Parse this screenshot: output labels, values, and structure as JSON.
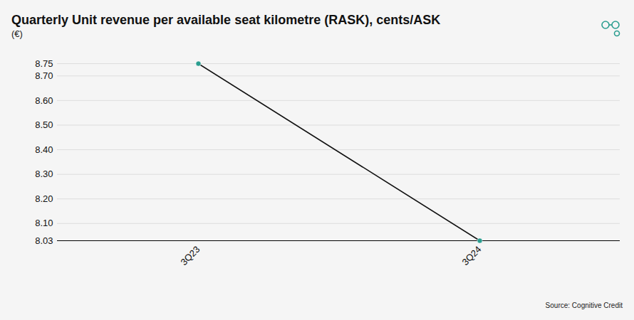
{
  "chart_data": {
    "type": "line",
    "title": "Quarterly Unit revenue per available seat kilometre (RASK), cents/ASK",
    "subtitle": "(€)",
    "source": "Source: Cognitive Credit",
    "categories": [
      "3Q23",
      "3Q24"
    ],
    "values": [
      8.75,
      8.03
    ],
    "color": "#111111",
    "marker": "circle",
    "ylim": [
      8.03,
      8.75
    ],
    "yticks": [
      8.03,
      {
        "value": 8.1,
        "label": "8.10"
      },
      {
        "value": 8.2,
        "label": "8.20"
      },
      {
        "value": 8.3,
        "label": "8.30"
      },
      {
        "value": 8.4,
        "label": "8.40"
      },
      {
        "value": 8.5,
        "label": "8.50"
      },
      {
        "value": 8.6,
        "label": "8.60"
      },
      {
        "value": 8.7,
        "label": "8.70"
      },
      8.75
    ],
    "grid": true
  }
}
